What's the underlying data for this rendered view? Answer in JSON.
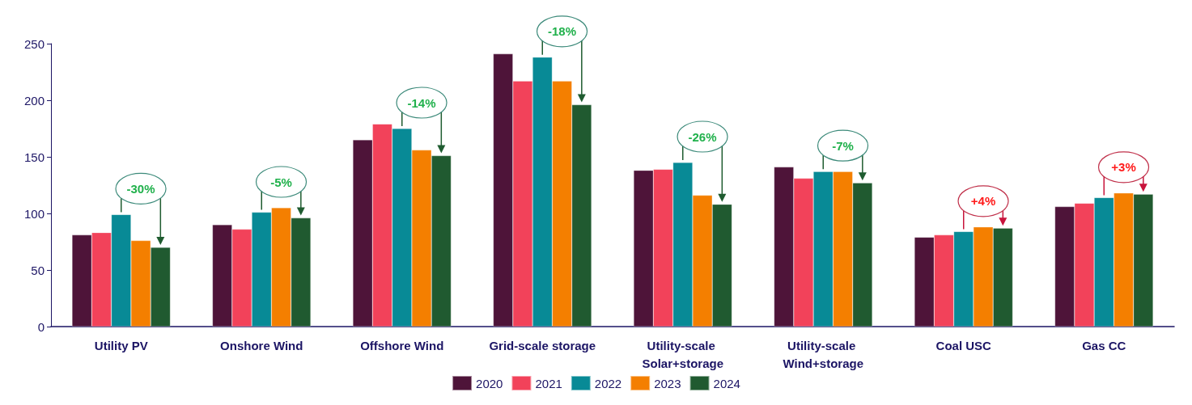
{
  "chart_data": {
    "type": "bar",
    "categories": [
      "Utility PV",
      "Onshore Wind",
      "Offshore Wind",
      "Grid-scale storage",
      "Utility-scale Solar+storage",
      "Utility-scale Wind+storage",
      "Coal USC",
      "Gas CC"
    ],
    "series": [
      {
        "name": "2020",
        "color": "#4e1439",
        "values": [
          81,
          90,
          165,
          241,
          138,
          141,
          79,
          106
        ]
      },
      {
        "name": "2021",
        "color": "#f2425a",
        "values": [
          83,
          86,
          179,
          217,
          139,
          131,
          81,
          109
        ]
      },
      {
        "name": "2022",
        "color": "#088a96",
        "values": [
          99,
          101,
          175,
          238,
          145,
          137,
          84,
          114
        ]
      },
      {
        "name": "2023",
        "color": "#f47f00",
        "values": [
          76,
          105,
          156,
          217,
          116,
          137,
          88,
          118
        ]
      },
      {
        "name": "2024",
        "color": "#205a30",
        "values": [
          70,
          96,
          151,
          196,
          108,
          127,
          87,
          117
        ]
      }
    ],
    "ylim": [
      0,
      250
    ],
    "yticks": [
      0,
      50,
      100,
      150,
      200,
      250
    ],
    "grid": false,
    "legend": "bottom",
    "annotations": [
      "-30%",
      "-5%",
      "-14%",
      "-18%",
      "-26%",
      "-7%",
      "+4%",
      "+3%"
    ]
  }
}
